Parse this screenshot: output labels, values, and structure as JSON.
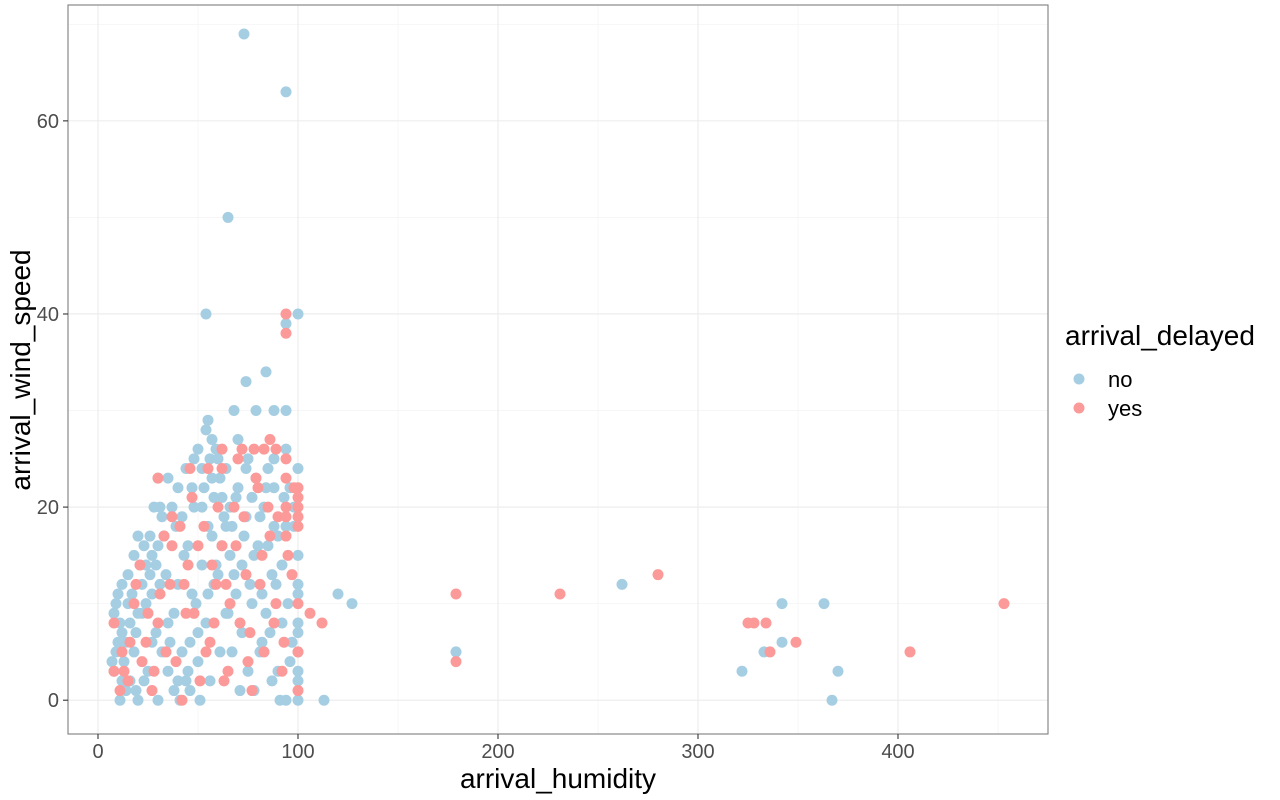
{
  "chart_data": {
    "type": "scatter",
    "title": "",
    "xlabel": "arrival_humidity",
    "ylabel": "arrival_wind_speed",
    "xlim": [
      -15,
      475
    ],
    "ylim": [
      -3.5,
      72
    ],
    "x_ticks": [
      0,
      100,
      200,
      300,
      400
    ],
    "y_ticks": [
      0,
      20,
      40,
      60
    ],
    "x_minor_ticks": [
      50,
      150,
      250,
      350,
      450
    ],
    "y_minor_ticks": [
      10,
      30,
      50,
      70
    ],
    "grid": true,
    "legend": {
      "title": "arrival_delayed",
      "position": "right"
    },
    "series": [
      {
        "name": "no",
        "color": "#a6cee3",
        "points": [
          [
            73,
            69
          ],
          [
            94,
            63
          ],
          [
            65,
            50
          ],
          [
            54,
            40
          ],
          [
            100,
            40
          ],
          [
            94,
            39
          ],
          [
            94,
            30
          ],
          [
            74,
            33
          ],
          [
            84,
            34
          ],
          [
            68,
            30
          ],
          [
            79,
            30
          ],
          [
            88,
            30
          ],
          [
            55,
            29
          ],
          [
            54,
            28
          ],
          [
            57,
            27
          ],
          [
            70,
            27
          ],
          [
            50,
            26
          ],
          [
            59,
            26
          ],
          [
            94,
            26
          ],
          [
            48,
            25
          ],
          [
            56,
            25
          ],
          [
            60,
            25
          ],
          [
            75,
            25
          ],
          [
            88,
            25
          ],
          [
            100,
            24
          ],
          [
            44,
            24
          ],
          [
            52,
            24
          ],
          [
            64,
            24
          ],
          [
            85,
            24
          ],
          [
            120,
            11
          ],
          [
            127,
            10
          ],
          [
            179,
            5
          ],
          [
            262,
            12
          ],
          [
            322,
            3
          ],
          [
            333,
            5
          ],
          [
            342,
            10
          ],
          [
            342,
            6
          ],
          [
            363,
            10
          ],
          [
            367,
            0
          ],
          [
            370,
            3
          ],
          [
            113,
            0
          ],
          [
            100,
            0
          ],
          [
            30,
            23
          ],
          [
            35,
            23
          ],
          [
            40,
            22
          ],
          [
            28,
            20
          ],
          [
            32,
            19
          ],
          [
            26,
            17
          ],
          [
            20,
            17
          ],
          [
            23,
            16
          ],
          [
            18,
            15
          ],
          [
            15,
            13
          ],
          [
            12,
            12
          ],
          [
            10,
            11
          ],
          [
            9,
            10
          ],
          [
            8,
            9
          ],
          [
            7,
            4
          ],
          [
            8,
            3
          ],
          [
            11,
            0
          ],
          [
            14,
            1
          ],
          [
            12,
            2
          ],
          [
            14,
            6
          ],
          [
            16,
            8
          ],
          [
            20,
            9
          ],
          [
            22,
            12
          ],
          [
            24,
            14
          ],
          [
            27,
            11
          ],
          [
            29,
            7
          ],
          [
            32,
            5
          ],
          [
            35,
            3
          ],
          [
            38,
            1
          ],
          [
            41,
            0
          ],
          [
            44,
            2
          ],
          [
            46,
            6
          ],
          [
            49,
            10
          ],
          [
            52,
            14
          ],
          [
            55,
            18
          ],
          [
            58,
            21
          ],
          [
            61,
            23
          ],
          [
            63,
            19
          ],
          [
            66,
            15
          ],
          [
            69,
            11
          ],
          [
            72,
            7
          ],
          [
            75,
            3
          ],
          [
            78,
            1
          ],
          [
            81,
            5
          ],
          [
            84,
            9
          ],
          [
            87,
            13
          ],
          [
            90,
            17
          ],
          [
            93,
            21
          ],
          [
            96,
            22
          ],
          [
            98,
            18
          ],
          [
            100,
            15
          ],
          [
            100,
            11
          ],
          [
            100,
            8
          ],
          [
            100,
            5
          ],
          [
            100,
            2
          ],
          [
            94,
            0
          ],
          [
            90,
            3
          ],
          [
            86,
            7
          ],
          [
            82,
            11
          ],
          [
            78,
            15
          ],
          [
            74,
            19
          ],
          [
            70,
            22
          ],
          [
            66,
            20
          ],
          [
            62,
            16
          ],
          [
            58,
            12
          ],
          [
            54,
            8
          ],
          [
            50,
            4
          ],
          [
            46,
            1
          ],
          [
            42,
            5
          ],
          [
            38,
            9
          ],
          [
            34,
            13
          ],
          [
            30,
            16
          ],
          [
            26,
            13
          ],
          [
            22,
            9
          ],
          [
            18,
            5
          ],
          [
            16,
            2
          ],
          [
            20,
            0
          ],
          [
            25,
            3
          ],
          [
            30,
            0
          ],
          [
            36,
            6
          ],
          [
            40,
            12
          ],
          [
            45,
            16
          ],
          [
            48,
            20
          ],
          [
            53,
            22
          ],
          [
            57,
            17
          ],
          [
            60,
            13
          ],
          [
            64,
            9
          ],
          [
            67,
            5
          ],
          [
            71,
            1
          ],
          [
            76,
            12
          ],
          [
            80,
            16
          ],
          [
            83,
            20
          ],
          [
            88,
            22
          ],
          [
            92,
            14
          ],
          [
            95,
            10
          ],
          [
            97,
            6
          ],
          [
            96,
            4
          ],
          [
            92,
            8
          ],
          [
            89,
            12
          ],
          [
            85,
            16
          ],
          [
            81,
            19
          ],
          [
            77,
            21
          ],
          [
            73,
            17
          ],
          [
            68,
            13
          ],
          [
            65,
            9
          ],
          [
            61,
            5
          ],
          [
            56,
            2
          ],
          [
            51,
            0
          ],
          [
            47,
            11
          ],
          [
            43,
            15
          ],
          [
            39,
            18
          ],
          [
            33,
            17
          ],
          [
            29,
            14
          ],
          [
            24,
            10
          ],
          [
            19,
            7
          ],
          [
            13,
            4
          ],
          [
            10,
            6
          ],
          [
            11,
            8
          ],
          [
            17,
            11
          ],
          [
            21,
            14
          ],
          [
            27,
            15
          ],
          [
            31,
            20
          ],
          [
            37,
            20
          ],
          [
            42,
            19
          ],
          [
            47,
            22
          ],
          [
            52,
            20
          ],
          [
            57,
            23
          ],
          [
            62,
            21
          ],
          [
            67,
            18
          ],
          [
            72,
            14
          ],
          [
            77,
            10
          ],
          [
            82,
            6
          ],
          [
            87,
            2
          ],
          [
            91,
            0
          ],
          [
            94,
            18
          ],
          [
            98,
            20
          ],
          [
            100,
            12
          ],
          [
            100,
            7
          ],
          [
            100,
            3
          ],
          [
            88,
            18
          ],
          [
            84,
            22
          ],
          [
            79,
            23
          ],
          [
            74,
            24
          ],
          [
            69,
            21
          ],
          [
            64,
            18
          ],
          [
            59,
            14
          ],
          [
            55,
            11
          ],
          [
            50,
            7
          ],
          [
            45,
            3
          ],
          [
            40,
            2
          ],
          [
            35,
            8
          ],
          [
            31,
            12
          ],
          [
            27,
            6
          ],
          [
            23,
            2
          ],
          [
            19,
            1
          ],
          [
            15,
            10
          ],
          [
            12,
            7
          ],
          [
            9,
            5
          ]
        ]
      },
      {
        "name": "yes",
        "color": "#fb9a99",
        "points": [
          [
            94,
            40
          ],
          [
            94,
            38
          ],
          [
            86,
            27
          ],
          [
            62,
            26
          ],
          [
            72,
            26
          ],
          [
            78,
            26
          ],
          [
            83,
            26
          ],
          [
            89,
            26
          ],
          [
            70,
            25
          ],
          [
            94,
            25
          ],
          [
            46,
            24
          ],
          [
            55,
            24
          ],
          [
            62,
            24
          ],
          [
            94,
            23
          ],
          [
            30,
            23
          ],
          [
            79,
            23
          ],
          [
            98,
            22
          ],
          [
            100,
            22
          ],
          [
            100,
            21
          ],
          [
            100,
            20
          ],
          [
            94,
            20
          ],
          [
            100,
            19
          ],
          [
            94,
            19
          ],
          [
            100,
            18
          ],
          [
            94,
            17
          ],
          [
            106,
            9
          ],
          [
            112,
            8
          ],
          [
            179,
            11
          ],
          [
            179,
            4
          ],
          [
            231,
            11
          ],
          [
            280,
            13
          ],
          [
            325,
            8
          ],
          [
            328,
            8
          ],
          [
            334,
            8
          ],
          [
            336,
            5
          ],
          [
            349,
            6
          ],
          [
            406,
            5
          ],
          [
            453,
            10
          ],
          [
            8,
            8
          ],
          [
            8,
            3
          ],
          [
            12,
            5
          ],
          [
            15,
            2
          ],
          [
            18,
            10
          ],
          [
            21,
            14
          ],
          [
            24,
            6
          ],
          [
            27,
            1
          ],
          [
            30,
            8
          ],
          [
            33,
            17
          ],
          [
            36,
            12
          ],
          [
            39,
            4
          ],
          [
            42,
            0
          ],
          [
            45,
            14
          ],
          [
            48,
            9
          ],
          [
            51,
            2
          ],
          [
            53,
            18
          ],
          [
            56,
            6
          ],
          [
            59,
            12
          ],
          [
            62,
            16
          ],
          [
            65,
            3
          ],
          [
            68,
            20
          ],
          [
            71,
            8
          ],
          [
            74,
            13
          ],
          [
            77,
            1
          ],
          [
            80,
            22
          ],
          [
            83,
            5
          ],
          [
            86,
            17
          ],
          [
            89,
            10
          ],
          [
            92,
            3
          ],
          [
            95,
            15
          ],
          [
            100,
            10
          ],
          [
            100,
            5
          ],
          [
            100,
            1
          ],
          [
            97,
            13
          ],
          [
            90,
            19
          ],
          [
            85,
            20
          ],
          [
            81,
            12
          ],
          [
            76,
            7
          ],
          [
            73,
            19
          ],
          [
            69,
            16
          ],
          [
            66,
            10
          ],
          [
            63,
            2
          ],
          [
            60,
            20
          ],
          [
            57,
            14
          ],
          [
            54,
            5
          ],
          [
            50,
            16
          ],
          [
            47,
            21
          ],
          [
            44,
            9
          ],
          [
            41,
            18
          ],
          [
            37,
            16
          ],
          [
            34,
            5
          ],
          [
            31,
            11
          ],
          [
            28,
            3
          ],
          [
            25,
            9
          ],
          [
            22,
            4
          ],
          [
            19,
            12
          ],
          [
            16,
            6
          ],
          [
            13,
            3
          ],
          [
            11,
            1
          ],
          [
            37,
            19
          ],
          [
            43,
            12
          ],
          [
            58,
            8
          ],
          [
            64,
            12
          ],
          [
            75,
            4
          ],
          [
            82,
            15
          ],
          [
            88,
            8
          ],
          [
            93,
            6
          ]
        ]
      }
    ]
  }
}
